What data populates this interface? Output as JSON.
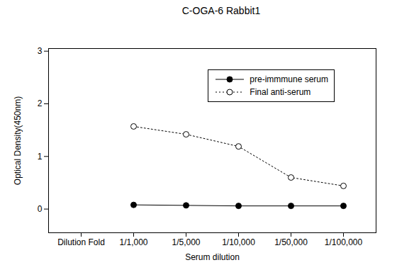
{
  "chart_data": {
    "type": "line",
    "title": "C-OGA-6  Rabbit1",
    "x_label": "Serum dilution",
    "y_label": "Optical Density(450nm)",
    "categories": [
      "Dilution Fold",
      "1/1,000",
      "1/5,000",
      "1/10,000",
      "1/50,000",
      "1/100,000"
    ],
    "series": [
      {
        "name": "pre-immmune serum",
        "color": "#000000",
        "marker": "circle",
        "line_style": "solid",
        "values": [
          null,
          0.08,
          0.07,
          0.06,
          0.06,
          0.06
        ]
      },
      {
        "name": "Final anti-serum",
        "color": "#000000",
        "marker": "circle-open",
        "line_style": "dotted",
        "values": [
          null,
          1.57,
          1.42,
          1.19,
          0.6,
          0.44
        ]
      }
    ],
    "ylim": [
      -0.45,
      3.05
    ],
    "yticks": [
      0,
      1,
      2,
      3
    ],
    "grid": false,
    "legend": "top-right"
  }
}
